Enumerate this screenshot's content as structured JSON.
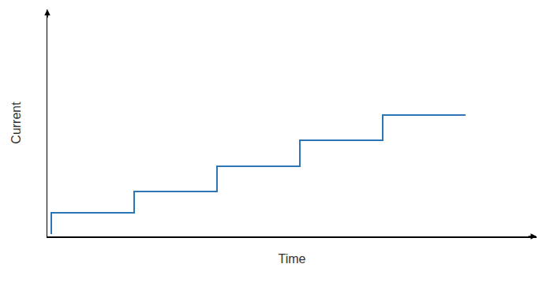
{
  "chart_data": {
    "type": "line",
    "x_label": "Time",
    "y_label": "Current",
    "x": [
      0.5,
      0.5,
      11,
      21.5,
      32,
      42.5,
      53
    ],
    "values": [
      0.3,
      3,
      5.7,
      8.9,
      12.2,
      15.4,
      15.4
    ],
    "color": "#2e75b6",
    "line_style": "step",
    "xlim": [
      0,
      62
    ],
    "ylim": [
      0,
      28.8
    ],
    "grid": false,
    "tick_labels": false
  }
}
